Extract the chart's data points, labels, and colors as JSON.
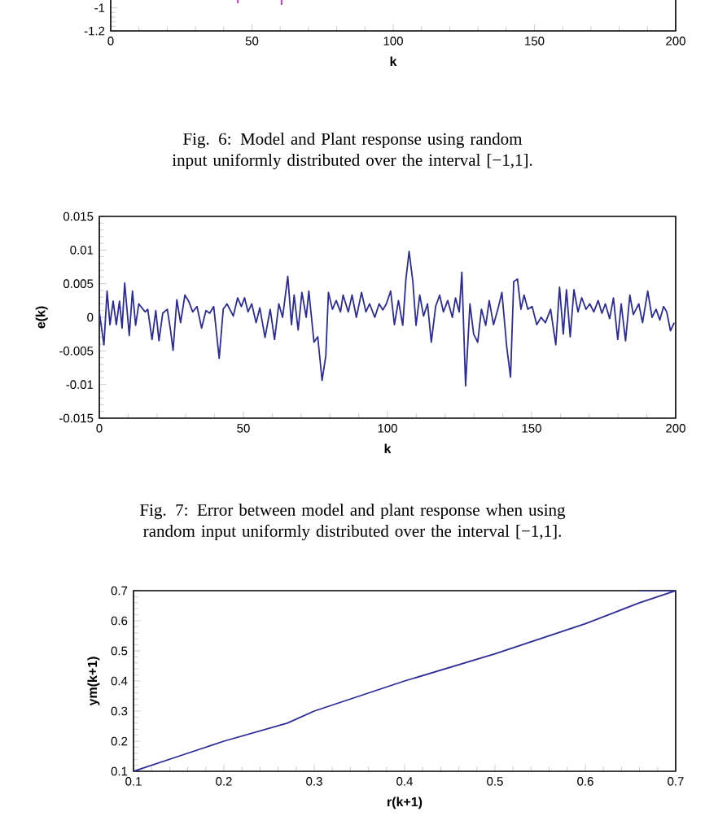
{
  "chart_data": [
    {
      "type": "line",
      "xlabel": "k",
      "xlim": [
        0,
        200
      ],
      "ylim": [
        -1.2,
        -0.89
      ],
      "xticks": [
        0,
        50,
        100,
        150,
        200
      ],
      "yticks": [
        -1.2,
        -1
      ],
      "x": [
        45,
        45,
        52,
        60.5,
        60.5
      ],
      "values": [
        -0.9,
        -0.96,
        null,
        -0.9,
        -0.975
      ],
      "color": "#e020e0",
      "annotations": [
        "Fig. 6: Model and Plant response using random input uniformly distributed over the interval [−1,1]."
      ]
    },
    {
      "type": "line",
      "xlabel": "k",
      "ylabel": "e(k)",
      "xlim": [
        0,
        200
      ],
      "ylim": [
        -0.015,
        0.015
      ],
      "xticks": [
        0,
        50,
        100,
        150,
        200
      ],
      "yticks": [
        -0.015,
        -0.01,
        -0.005,
        0,
        0.005,
        0.01,
        0.015
      ],
      "color": "#2b2b9a",
      "x": [
        0,
        1.6,
        2.7,
        3.7,
        4.8,
        5.9,
        7,
        7.9,
        8.8,
        10.4,
        11.5,
        12.6,
        13.7,
        15.9,
        16.8,
        18.3,
        19.6,
        20.7,
        22,
        23.6,
        24.7,
        25.6,
        26.9,
        28.2,
        29.7,
        31,
        32.4,
        33.9,
        35.5,
        37,
        38.3,
        39.7,
        41.6,
        43,
        44.3,
        46.5,
        48,
        49.3,
        50.4,
        51.6,
        52.9,
        54.4,
        55.7,
        57.5,
        59.3,
        60.8,
        62.3,
        63.6,
        65.4,
        66.7,
        67.6,
        69,
        70.3,
        71.8,
        72.7,
        74.5,
        75.8,
        77.3,
        78.6,
        79.5,
        80.9,
        82.2,
        83.7,
        84.6,
        86.4,
        87.7,
        89.2,
        91,
        92.5,
        93.8,
        95.6,
        97.1,
        98.4,
        99.6,
        101.1,
        102.4,
        103.8,
        105.3,
        106.4,
        107.5,
        108.8,
        109.9,
        111.2,
        112.5,
        113.9,
        115.2,
        116.7,
        118.1,
        119.4,
        120.9,
        122.5,
        123.6,
        124.9,
        125.8,
        127.1,
        128.6,
        129.9,
        131.3,
        132.6,
        134.1,
        135.3,
        136.8,
        138.3,
        139.7,
        141.4,
        142.7,
        143.8,
        145.1,
        146.3,
        147.4,
        148.7,
        150.2,
        151.8,
        153.3,
        154.8,
        156.6,
        158.4,
        159.7,
        161,
        162.1,
        163.4,
        164.7,
        166.1,
        167.4,
        168.9,
        170.2,
        171.6,
        173.1,
        174.4,
        175.6,
        177.1,
        178.4,
        179.9,
        181.1,
        182.6,
        184.1,
        185.3,
        187.2,
        188.5,
        190.3,
        191.8,
        193.2,
        194.5,
        195.8,
        196.9,
        198.2,
        199.5
      ],
      "values": [
        0.0008,
        -0.0041,
        0.0039,
        -0.0011,
        0.0024,
        -0.0011,
        0.0024,
        -0.0016,
        0.0051,
        -0.0027,
        0.0039,
        -0.0012,
        0.002,
        0.0008,
        0.0012,
        -0.0033,
        0.001,
        -0.0035,
        0.0006,
        0.0012,
        -0.0019,
        -0.0049,
        0.0026,
        -0.0008,
        0.0033,
        0.0024,
        0.0008,
        0.0016,
        -0.0016,
        0.001,
        0.0006,
        0.0016,
        -0.0061,
        0.0012,
        0.002,
        0.0002,
        0.0029,
        0.0016,
        0.0029,
        0.0008,
        0.002,
        -0.0008,
        0.0014,
        -0.003,
        0.0012,
        -0.0033,
        0.002,
        0,
        0.0061,
        -0.0011,
        0.0033,
        -0.0019,
        0.0037,
        0,
        0.0039,
        -0.0037,
        -0.0029,
        -0.0094,
        -0.0057,
        0.0037,
        0.0012,
        0.0025,
        0.0008,
        0.0033,
        0.0008,
        0.0033,
        0,
        0.0037,
        0.0008,
        0.002,
        0,
        0.002,
        0.0011,
        0.002,
        0.0039,
        -0.0011,
        0.0025,
        -0.0012,
        0.0057,
        0.0098,
        0.0053,
        -0.0012,
        0.0033,
        0.0002,
        0.002,
        -0.0037,
        0.0016,
        0.0033,
        0.0008,
        0.0025,
        0,
        0.0029,
        0.0008,
        0.0067,
        -0.0102,
        0.002,
        -0.0025,
        -0.0037,
        0.0012,
        -0.0012,
        0.0025,
        -0.0011,
        0.0012,
        0.0037,
        -0.0045,
        -0.0089,
        0.0053,
        0.0057,
        0.0012,
        0.0033,
        0.0012,
        0.0016,
        -0.0011,
        0,
        -0.0008,
        0.0012,
        -0.0041,
        0.0045,
        -0.0025,
        0.0041,
        -0.0029,
        0.0041,
        0.0008,
        0.0029,
        0.0012,
        0.002,
        0.0008,
        0.0025,
        0.0006,
        0.002,
        -0.0002,
        0.0029,
        -0.0033,
        0.002,
        -0.0035,
        0.0033,
        0.0004,
        0.002,
        -0.0008,
        0.0039,
        0,
        0.0012,
        -0.0004,
        0.0016,
        0.0008,
        -0.002,
        -0.0008
      ],
      "annotations": [
        "Fig. 7: Error between model and plant response when using random input uniformly distributed over the interval [−1,1]."
      ]
    },
    {
      "type": "line",
      "xlabel": "r(k+1)",
      "ylabel": "ym(k+1)",
      "xlim": [
        0.1,
        0.7
      ],
      "ylim": [
        0.1,
        0.7
      ],
      "xticks": [
        0.1,
        0.2,
        0.3,
        0.4,
        0.5,
        0.6,
        0.7
      ],
      "yticks": [
        0.1,
        0.2,
        0.3,
        0.4,
        0.5,
        0.6,
        0.7
      ],
      "color": "#2b2b9a",
      "x": [
        0.1,
        0.15,
        0.2,
        0.27,
        0.3,
        0.4,
        0.5,
        0.55,
        0.6,
        0.66,
        0.7,
        0.66
      ],
      "values": [
        0.1,
        0.15,
        0.2,
        0.26,
        0.3,
        0.4,
        0.49,
        0.54,
        0.59,
        0.66,
        0.7,
        0.7
      ]
    }
  ]
}
